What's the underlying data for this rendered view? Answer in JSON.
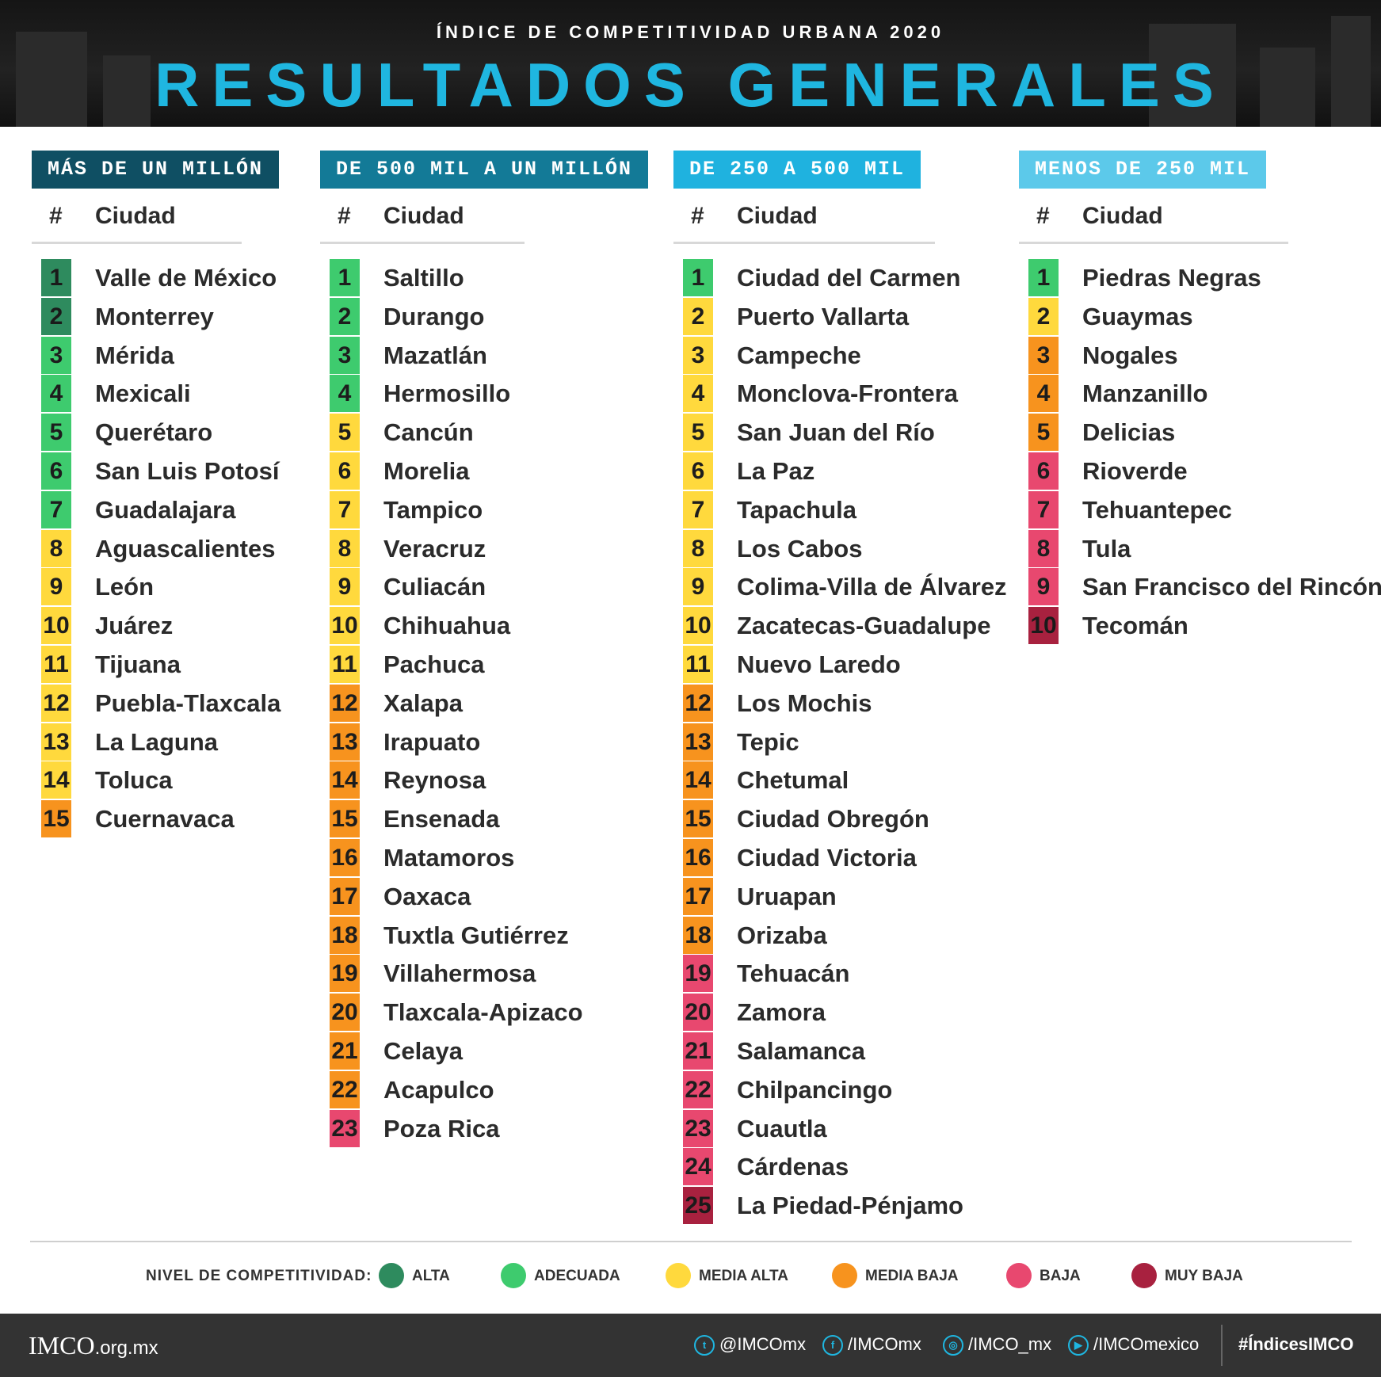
{
  "header": {
    "subtitle": "ÍNDICE DE COMPETITIVIDAD URBANA 2020",
    "title": "RESULTADOS GENERALES"
  },
  "colors": {
    "alta": "#2e8b5e",
    "adecuada": "#3ecb6e",
    "media_alta": "#ffd93d",
    "media_baja": "#f7931e",
    "baja": "#e8486f",
    "muy_baja": "#a8213f"
  },
  "column_headers": {
    "rank": "#",
    "city": "Ciudad"
  },
  "columns": [
    {
      "title": "MÁS DE UN MILLÓN",
      "title_color": "#0f4f63",
      "rows": [
        {
          "rank": "1",
          "city": "Valle de México",
          "level": "alta"
        },
        {
          "rank": "2",
          "city": "Monterrey",
          "level": "alta"
        },
        {
          "rank": "3",
          "city": "Mérida",
          "level": "adecuada"
        },
        {
          "rank": "4",
          "city": "Mexicali",
          "level": "adecuada"
        },
        {
          "rank": "5",
          "city": "Querétaro",
          "level": "adecuada"
        },
        {
          "rank": "6",
          "city": "San Luis Potosí",
          "level": "adecuada"
        },
        {
          "rank": "7",
          "city": "Guadalajara",
          "level": "adecuada"
        },
        {
          "rank": "8",
          "city": "Aguascalientes",
          "level": "media_alta"
        },
        {
          "rank": "9",
          "city": "León",
          "level": "media_alta"
        },
        {
          "rank": "10",
          "city": "Juárez",
          "level": "media_alta"
        },
        {
          "rank": "11",
          "city": "Tijuana",
          "level": "media_alta"
        },
        {
          "rank": "12",
          "city": "Puebla-Tlaxcala",
          "level": "media_alta"
        },
        {
          "rank": "13",
          "city": "La Laguna",
          "level": "media_alta"
        },
        {
          "rank": "14",
          "city": "Toluca",
          "level": "media_alta"
        },
        {
          "rank": "15",
          "city": "Cuernavaca",
          "level": "media_baja"
        }
      ]
    },
    {
      "title": "DE 500 MIL A UN MILLÓN",
      "title_color": "#137a97",
      "rows": [
        {
          "rank": "1",
          "city": "Saltillo",
          "level": "adecuada"
        },
        {
          "rank": "2",
          "city": "Durango",
          "level": "adecuada"
        },
        {
          "rank": "3",
          "city": "Mazatlán",
          "level": "adecuada"
        },
        {
          "rank": "4",
          "city": "Hermosillo",
          "level": "adecuada"
        },
        {
          "rank": "5",
          "city": "Cancún",
          "level": "media_alta"
        },
        {
          "rank": "6",
          "city": "Morelia",
          "level": "media_alta"
        },
        {
          "rank": "7",
          "city": "Tampico",
          "level": "media_alta"
        },
        {
          "rank": "8",
          "city": "Veracruz",
          "level": "media_alta"
        },
        {
          "rank": "9",
          "city": "Culiacán",
          "level": "media_alta"
        },
        {
          "rank": "10",
          "city": "Chihuahua",
          "level": "media_alta"
        },
        {
          "rank": "11",
          "city": "Pachuca",
          "level": "media_alta"
        },
        {
          "rank": "12",
          "city": "Xalapa",
          "level": "media_baja"
        },
        {
          "rank": "13",
          "city": "Irapuato",
          "level": "media_baja"
        },
        {
          "rank": "14",
          "city": "Reynosa",
          "level": "media_baja"
        },
        {
          "rank": "15",
          "city": "Ensenada",
          "level": "media_baja"
        },
        {
          "rank": "16",
          "city": "Matamoros",
          "level": "media_baja"
        },
        {
          "rank": "17",
          "city": "Oaxaca",
          "level": "media_baja"
        },
        {
          "rank": "18",
          "city": "Tuxtla Gutiérrez",
          "level": "media_baja"
        },
        {
          "rank": "19",
          "city": "Villahermosa",
          "level": "media_baja"
        },
        {
          "rank": "20",
          "city": "Tlaxcala-Apizaco",
          "level": "media_baja"
        },
        {
          "rank": "21",
          "city": "Celaya",
          "level": "media_baja"
        },
        {
          "rank": "22",
          "city": "Acapulco",
          "level": "media_baja"
        },
        {
          "rank": "23",
          "city": "Poza Rica",
          "level": "baja"
        }
      ]
    },
    {
      "title": "DE 250 A 500 MIL",
      "title_color": "#1fb2df",
      "rows": [
        {
          "rank": "1",
          "city": "Ciudad del Carmen",
          "level": "adecuada"
        },
        {
          "rank": "2",
          "city": "Puerto Vallarta",
          "level": "media_alta"
        },
        {
          "rank": "3",
          "city": "Campeche",
          "level": "media_alta"
        },
        {
          "rank": "4",
          "city": "Monclova-Frontera",
          "level": "media_alta"
        },
        {
          "rank": "5",
          "city": "San Juan del Río",
          "level": "media_alta"
        },
        {
          "rank": "6",
          "city": "La Paz",
          "level": "media_alta"
        },
        {
          "rank": "7",
          "city": "Tapachula",
          "level": "media_alta"
        },
        {
          "rank": "8",
          "city": "Los Cabos",
          "level": "media_alta"
        },
        {
          "rank": "9",
          "city": "Colima-Villa de Álvarez",
          "level": "media_alta"
        },
        {
          "rank": "10",
          "city": "Zacatecas-Guadalupe",
          "level": "media_alta"
        },
        {
          "rank": "11",
          "city": "Nuevo Laredo",
          "level": "media_alta"
        },
        {
          "rank": "12",
          "city": "Los Mochis",
          "level": "media_baja"
        },
        {
          "rank": "13",
          "city": "Tepic",
          "level": "media_baja"
        },
        {
          "rank": "14",
          "city": "Chetumal",
          "level": "media_baja"
        },
        {
          "rank": "15",
          "city": "Ciudad Obregón",
          "level": "media_baja"
        },
        {
          "rank": "16",
          "city": "Ciudad Victoria",
          "level": "media_baja"
        },
        {
          "rank": "17",
          "city": "Uruapan",
          "level": "media_baja"
        },
        {
          "rank": "18",
          "city": "Orizaba",
          "level": "media_baja"
        },
        {
          "rank": "19",
          "city": "Tehuacán",
          "level": "baja"
        },
        {
          "rank": "20",
          "city": "Zamora",
          "level": "baja"
        },
        {
          "rank": "21",
          "city": "Salamanca",
          "level": "baja"
        },
        {
          "rank": "22",
          "city": "Chilpancingo",
          "level": "baja"
        },
        {
          "rank": "23",
          "city": "Cuautla",
          "level": "baja"
        },
        {
          "rank": "24",
          "city": "Cárdenas",
          "level": "baja"
        },
        {
          "rank": "25",
          "city": "La Piedad-Pénjamo",
          "level": "muy_baja"
        }
      ]
    },
    {
      "title": "MENOS DE 250 MIL",
      "title_color": "#5cc9ea",
      "rows": [
        {
          "rank": "1",
          "city": "Piedras Negras",
          "level": "adecuada"
        },
        {
          "rank": "2",
          "city": "Guaymas",
          "level": "media_alta"
        },
        {
          "rank": "3",
          "city": "Nogales",
          "level": "media_baja"
        },
        {
          "rank": "4",
          "city": "Manzanillo",
          "level": "media_baja"
        },
        {
          "rank": "5",
          "city": "Delicias",
          "level": "media_baja"
        },
        {
          "rank": "6",
          "city": "Rioverde",
          "level": "baja"
        },
        {
          "rank": "7",
          "city": "Tehuantepec",
          "level": "baja"
        },
        {
          "rank": "8",
          "city": "Tula",
          "level": "baja"
        },
        {
          "rank": "9",
          "city": "San Francisco del Rincón",
          "level": "baja"
        },
        {
          "rank": "10",
          "city": "Tecomán",
          "level": "muy_baja"
        }
      ]
    }
  ],
  "legend": {
    "label": "NIVEL DE COMPETITIVIDAD:",
    "items": [
      {
        "label": "ALTA",
        "level": "alta"
      },
      {
        "label": "ADECUADA",
        "level": "adecuada"
      },
      {
        "label": "MEDIA ALTA",
        "level": "media_alta"
      },
      {
        "label": "MEDIA BAJA",
        "level": "media_baja"
      },
      {
        "label": "BAJA",
        "level": "baja"
      },
      {
        "label": "MUY BAJA",
        "level": "muy_baja"
      }
    ]
  },
  "footer": {
    "logo": "IMCO",
    "domain": ".org.mx",
    "social": [
      {
        "icon": "twitter-icon",
        "glyph": "t",
        "handle": "@IMCOmx"
      },
      {
        "icon": "facebook-icon",
        "glyph": "f",
        "handle": "/IMCOmx"
      },
      {
        "icon": "instagram-icon",
        "glyph": "◎",
        "handle": "/IMCO_mx"
      },
      {
        "icon": "youtube-icon",
        "glyph": "▶",
        "handle": "/IMCOmexico"
      }
    ],
    "hashtag": "#ÍndicesIMCO"
  }
}
